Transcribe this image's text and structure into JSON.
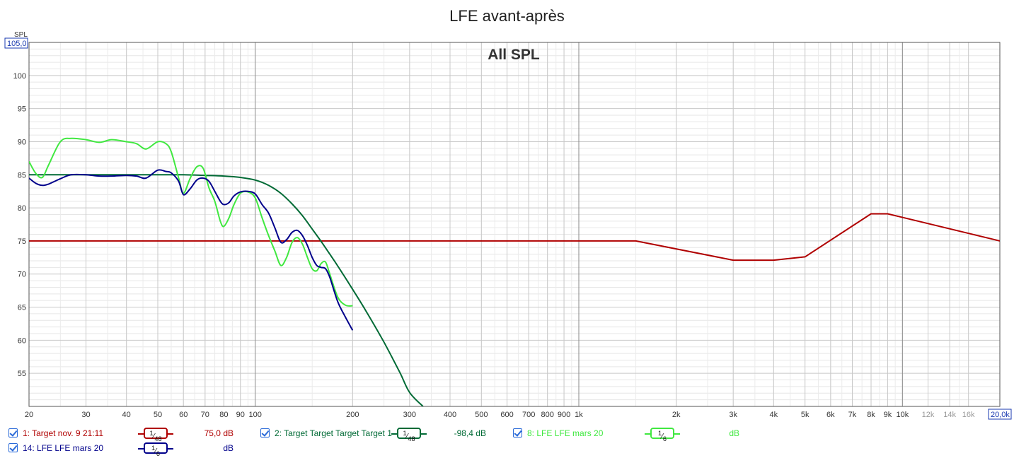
{
  "chart_data": {
    "type": "line",
    "title": "LFE avant-après",
    "annotation": "All SPL",
    "ylabel": "SPL",
    "x_scale": "log",
    "xlim": [
      20,
      20000
    ],
    "ylim": [
      50,
      105
    ],
    "y_max_box": "105,0",
    "x_max_box": "20,0k",
    "y_ticks": [
      55,
      60,
      65,
      70,
      75,
      80,
      85,
      90,
      95,
      100
    ],
    "x_tick_labels": [
      {
        "v": 20,
        "l": "20"
      },
      {
        "v": 30,
        "l": "30"
      },
      {
        "v": 40,
        "l": "40"
      },
      {
        "v": 50,
        "l": "50"
      },
      {
        "v": 60,
        "l": "60"
      },
      {
        "v": 70,
        "l": "70"
      },
      {
        "v": 80,
        "l": "80"
      },
      {
        "v": 90,
        "l": "90"
      },
      {
        "v": 100,
        "l": "100"
      },
      {
        "v": 200,
        "l": "200"
      },
      {
        "v": 300,
        "l": "300"
      },
      {
        "v": 400,
        "l": "400"
      },
      {
        "v": 500,
        "l": "500"
      },
      {
        "v": 600,
        "l": "600"
      },
      {
        "v": 700,
        "l": "700"
      },
      {
        "v": 800,
        "l": "800"
      },
      {
        "v": 900,
        "l": "900"
      },
      {
        "v": 1000,
        "l": "1k"
      },
      {
        "v": 2000,
        "l": "2k"
      },
      {
        "v": 3000,
        "l": "3k"
      },
      {
        "v": 4000,
        "l": "4k"
      },
      {
        "v": 5000,
        "l": "5k"
      },
      {
        "v": 6000,
        "l": "6k"
      },
      {
        "v": 7000,
        "l": "7k"
      },
      {
        "v": 8000,
        "l": "8k"
      },
      {
        "v": 9000,
        "l": "9k"
      },
      {
        "v": 10000,
        "l": "10k"
      },
      {
        "v": 12000,
        "l": "12k"
      },
      {
        "v": 14000,
        "l": "14k"
      },
      {
        "v": 16000,
        "l": "16k"
      }
    ],
    "grid": true,
    "series": [
      {
        "name": "1: Target nov. 9 21:11",
        "color": "#b00000",
        "x": [
          20,
          1500,
          3000,
          4000,
          5000,
          8000,
          9000,
          20000
        ],
        "y": [
          75,
          75,
          72.1,
          72.1,
          72.6,
          79.1,
          79.1,
          75
        ]
      },
      {
        "name": "2: Target Target Target Target 1",
        "color": "#006a35",
        "x": [
          20,
          30,
          40,
          50,
          60,
          70,
          80,
          90,
          100,
          110,
          120,
          130,
          140,
          150,
          160,
          170,
          180,
          200,
          220,
          250,
          280,
          300,
          330
        ],
        "y": [
          85,
          85,
          85,
          85,
          85,
          84.9,
          84.8,
          84.6,
          84.2,
          83.4,
          82.2,
          80.6,
          78.8,
          76.8,
          74.9,
          73,
          71.2,
          67.7,
          64.4,
          59.7,
          55.1,
          52.1,
          50
        ]
      },
      {
        "name": "8: LFE LFE mars 20",
        "color": "#40e840",
        "x": [
          20,
          21,
          22,
          23,
          25,
          27,
          30,
          33,
          36,
          40,
          43,
          46,
          50,
          53,
          55,
          58,
          60,
          63,
          66,
          69,
          72,
          75,
          78,
          80,
          83,
          86,
          90,
          95,
          100,
          105,
          110,
          115,
          120,
          125,
          130,
          135,
          140,
          145,
          150,
          155,
          160,
          165,
          170,
          180,
          190,
          200
        ],
        "y": [
          87,
          85.2,
          84.6,
          86.5,
          90,
          90.5,
          90.3,
          89.9,
          90.3,
          90,
          89.7,
          88.9,
          90,
          89.7,
          88.5,
          84.5,
          82.2,
          84.5,
          86.2,
          86,
          83,
          81,
          78,
          77.2,
          78.5,
          80.5,
          82.2,
          82.4,
          81.5,
          78.5,
          75.8,
          73.5,
          71.3,
          72.5,
          74.8,
          75.5,
          74.5,
          72.5,
          70.8,
          70.5,
          71.6,
          71.8,
          70,
          66.5,
          65.3,
          65.2
        ]
      },
      {
        "name": "14: LFE LFE mars 20",
        "color": "#00008b",
        "x": [
          20,
          21,
          22,
          23,
          25,
          27,
          30,
          33,
          36,
          40,
          43,
          46,
          50,
          53,
          55,
          58,
          60,
          63,
          66,
          69,
          72,
          75,
          78,
          80,
          83,
          86,
          90,
          95,
          100,
          105,
          110,
          115,
          120,
          125,
          130,
          135,
          140,
          145,
          150,
          155,
          160,
          165,
          170,
          180,
          190,
          200
        ],
        "y": [
          84.5,
          83.7,
          83.4,
          83.6,
          84.4,
          85,
          85,
          84.8,
          84.8,
          84.9,
          84.8,
          84.5,
          85.7,
          85.5,
          85.3,
          84,
          82,
          82.9,
          84.2,
          84.5,
          84,
          82.5,
          81,
          80.5,
          80.8,
          81.8,
          82.4,
          82.5,
          82.1,
          80.5,
          79.2,
          77,
          74.8,
          75.2,
          76.3,
          76.6,
          75.8,
          74.3,
          72.5,
          71.3,
          71,
          70.8,
          69.5,
          65.8,
          63.5,
          61.5
        ]
      }
    ]
  },
  "legend": [
    {
      "label": "1: Target nov. 9 21:11",
      "smoothing_num": "1",
      "smoothing_den": "48",
      "value": "75,0 dB",
      "color": "#b00000"
    },
    {
      "label": "2: Target Target Target Target 1",
      "smoothing_num": "1",
      "smoothing_den": "48",
      "value": "-98,4 dB",
      "color": "#006a35"
    },
    {
      "label": "8: LFE LFE mars 20",
      "smoothing_num": "1",
      "smoothing_den": "6",
      "value": "dB",
      "color": "#40e840"
    },
    {
      "label": "14: LFE LFE mars 20",
      "smoothing_num": "1",
      "smoothing_den": "6",
      "value": "dB",
      "color": "#00008b"
    }
  ]
}
